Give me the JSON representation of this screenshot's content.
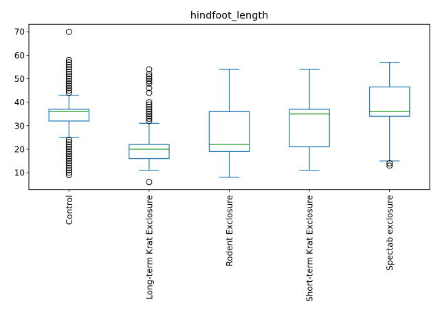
{
  "chart_data": {
    "type": "box",
    "title": "hindfoot_length",
    "xlabel": "",
    "ylabel": "",
    "ylim": [
      2.8,
      73.2
    ],
    "yticks": [
      10,
      20,
      30,
      40,
      50,
      60,
      70
    ],
    "grid": false,
    "colors": {
      "box": "#1f77b4",
      "median": "#2ca02c",
      "flier": "#000000"
    },
    "categories": [
      "Control",
      "Long-term Krat Exclosure",
      "Rodent Exclosure",
      "Short-term Krat Exclosure",
      "Spectab exclosure"
    ],
    "boxes": [
      {
        "whislo": 25,
        "q1": 32,
        "med": 36,
        "q3": 37,
        "whishi": 43,
        "fliers": [
          9,
          10,
          11,
          12,
          13,
          14,
          15,
          16,
          17,
          18,
          19,
          20,
          21,
          22,
          23,
          24,
          44,
          45,
          46,
          47,
          48,
          49,
          50,
          51,
          52,
          53,
          54,
          55,
          56,
          57,
          58,
          70
        ]
      },
      {
        "whislo": 11,
        "q1": 16,
        "med": 20,
        "q3": 22,
        "whishi": 31,
        "fliers": [
          6,
          32,
          33,
          34,
          35,
          36,
          37,
          38,
          39,
          40,
          44,
          46,
          48,
          49,
          50,
          51,
          52,
          54
        ]
      },
      {
        "whislo": 8,
        "q1": 19,
        "med": 22,
        "q3": 36,
        "whishi": 54,
        "fliers": []
      },
      {
        "whislo": 11,
        "q1": 21,
        "med": 35,
        "q3": 37,
        "whishi": 54,
        "fliers": []
      },
      {
        "whislo": 15,
        "q1": 34,
        "med": 36,
        "q3": 46.5,
        "whishi": 57,
        "fliers": [
          13,
          14
        ]
      }
    ]
  }
}
